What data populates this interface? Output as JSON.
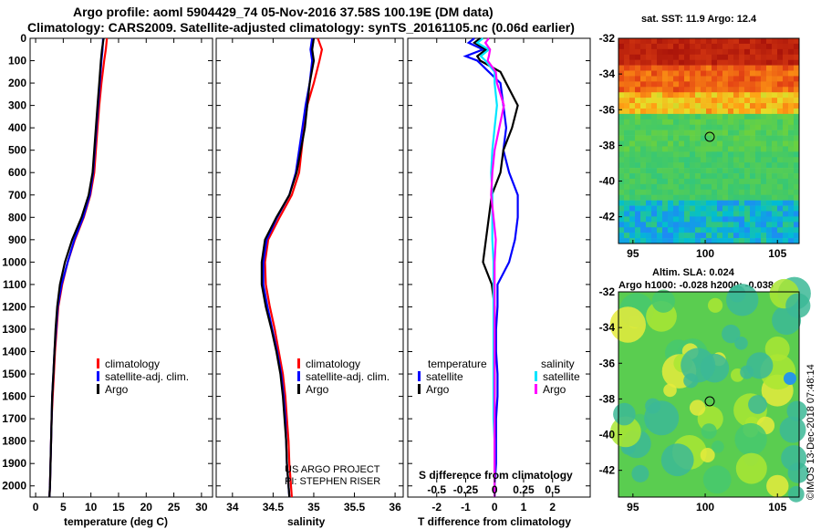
{
  "title_line1": "Argo profile: aoml 5904429_74 05-Nov-2016 37.58S 100.19E (DM data)",
  "title_line2": "Climatology: CARS2009. Satellite-adjusted climatology: synTS_20161105.nc (0.06d earlier)",
  "colors": {
    "climatology": "#ff0000",
    "satellite_adj": "#0000ff",
    "argo": "#000000",
    "sal_satellite": "#00e5ff",
    "sal_argo": "#ff00ff"
  },
  "chart_data": [
    {
      "type": "line",
      "id": "temperature",
      "xlabel": "temperature (deg C)",
      "xlim": [
        -1,
        32
      ],
      "xticks": [
        0,
        5,
        10,
        15,
        20,
        25,
        30
      ],
      "xtick_labels": [
        "0",
        "5",
        "10",
        "15",
        "20",
        "25",
        "30"
      ],
      "ylim": [
        2050,
        0
      ],
      "yticks": [
        0,
        100,
        200,
        300,
        400,
        500,
        600,
        700,
        800,
        900,
        1000,
        1100,
        1200,
        1300,
        1400,
        1500,
        1600,
        1700,
        1800,
        1900,
        2000
      ],
      "ytick_labels": [
        "0",
        "100",
        "200",
        "300",
        "400",
        "500",
        "600",
        "700",
        "800",
        "900",
        "1000",
        "1100",
        "1200",
        "1300",
        "1400",
        "1500",
        "1600",
        "1700",
        "1800",
        "1900",
        "2000"
      ],
      "legend": [
        "climatology",
        "satellite-adj. clim.",
        "Argo"
      ],
      "series": [
        {
          "name": "climatology",
          "depth": [
            0,
            50,
            100,
            200,
            300,
            400,
            500,
            600,
            700,
            800,
            900,
            1000,
            1100,
            1200,
            1300,
            1400,
            1500,
            1600,
            1700,
            1800,
            1900,
            2000,
            2050
          ],
          "values": [
            12.9,
            12.7,
            12.4,
            11.9,
            11.5,
            11.2,
            10.9,
            10.6,
            9.9,
            8.7,
            7.1,
            5.8,
            4.8,
            4.1,
            3.8,
            3.5,
            3.3,
            3.1,
            2.9,
            2.8,
            2.7,
            2.6,
            2.5
          ]
        },
        {
          "name": "satellite-adj. clim.",
          "depth": [
            0,
            50,
            100,
            200,
            300,
            400,
            500,
            600,
            700,
            800,
            900,
            1000,
            1100,
            1200,
            1300,
            1400,
            1500,
            1600,
            1700,
            1800,
            1900,
            2000,
            2050
          ],
          "values": [
            12.2,
            12.1,
            11.9,
            11.6,
            11.3,
            11.0,
            10.7,
            10.4,
            9.8,
            8.6,
            7.0,
            5.8,
            4.7,
            4.0,
            3.7,
            3.4,
            3.2,
            3.0,
            2.9,
            2.8,
            2.7,
            2.6,
            2.5
          ]
        },
        {
          "name": "Argo",
          "depth": [
            0,
            50,
            100,
            200,
            300,
            400,
            500,
            600,
            700,
            800,
            900,
            1000,
            1100,
            1200,
            1300,
            1400,
            1500,
            1600,
            1700,
            1800,
            1900,
            2000,
            2050
          ],
          "values": [
            12.3,
            12.0,
            11.8,
            11.5,
            11.2,
            10.9,
            10.6,
            10.3,
            9.6,
            8.3,
            6.6,
            5.3,
            4.4,
            3.9,
            3.6,
            3.4,
            3.2,
            3.0,
            2.9,
            2.8,
            2.7,
            2.6,
            2.5
          ]
        }
      ]
    },
    {
      "type": "line",
      "id": "salinity",
      "xlabel": "salinity",
      "xlim": [
        33.8,
        36.1
      ],
      "xticks": [
        34,
        34.5,
        35,
        35.5,
        36
      ],
      "xtick_labels": [
        "34",
        "34.5",
        "35",
        "35.5",
        "36"
      ],
      "ylim": [
        2050,
        0
      ],
      "legend": [
        "climatology",
        "satellite-adj. clim.",
        "Argo"
      ],
      "credit_line1": "US ARGO PROJECT",
      "credit_line2": "PI: STEPHEN RISER",
      "series": [
        {
          "name": "climatology",
          "depth": [
            0,
            50,
            100,
            200,
            300,
            400,
            500,
            600,
            700,
            800,
            900,
            1000,
            1100,
            1200,
            1300,
            1400,
            1500,
            1600,
            1700,
            1800,
            1900,
            2000,
            2050
          ],
          "values": [
            35.05,
            35.1,
            35.07,
            35.0,
            34.92,
            34.88,
            34.85,
            34.82,
            34.73,
            34.58,
            34.44,
            34.4,
            34.41,
            34.46,
            34.52,
            34.57,
            34.62,
            34.65,
            34.67,
            34.69,
            34.7,
            34.72,
            34.73
          ]
        },
        {
          "name": "satellite-adj. clim.",
          "depth": [
            0,
            50,
            100,
            200,
            300,
            400,
            500,
            600,
            700,
            800,
            900,
            1000,
            1100,
            1200,
            1300,
            1400,
            1500,
            1600,
            1700,
            1800,
            1900,
            2000,
            2050
          ],
          "values": [
            34.98,
            34.96,
            34.98,
            34.95,
            34.9,
            34.86,
            34.82,
            34.78,
            34.7,
            34.55,
            34.42,
            34.38,
            34.38,
            34.43,
            34.49,
            34.55,
            34.6,
            34.63,
            34.65,
            34.66,
            34.67,
            34.69,
            34.7
          ]
        },
        {
          "name": "Argo",
          "depth": [
            0,
            50,
            100,
            200,
            300,
            400,
            500,
            600,
            700,
            800,
            900,
            1000,
            1100,
            1200,
            1300,
            1400,
            1500,
            1600,
            1700,
            1800,
            1900,
            2000,
            2050
          ],
          "values": [
            35.0,
            34.98,
            35.0,
            34.95,
            34.92,
            34.89,
            34.84,
            34.79,
            34.7,
            34.54,
            34.4,
            34.36,
            34.36,
            34.41,
            34.48,
            34.54,
            34.59,
            34.62,
            34.64,
            34.66,
            34.67,
            34.69,
            34.7
          ]
        }
      ]
    },
    {
      "type": "line",
      "id": "differences",
      "xlabel": "T difference from climatology",
      "xlabel2": "S difference from climatology",
      "xlim": [
        -3,
        3.3
      ],
      "xticks": [
        -2,
        -1,
        0,
        1,
        2
      ],
      "xtick_labels": [
        "-2",
        "-1",
        "0",
        "1",
        "2"
      ],
      "sal_xtick_labels": [
        "-0.5",
        "-0.25",
        "0",
        "0.25",
        "0.5"
      ],
      "ylim": [
        2050,
        0
      ],
      "legend_temperature_title": "temperature",
      "legend_salinity_title": "salinity",
      "legend_temperature": [
        "satellite",
        "Argo"
      ],
      "legend_salinity": [
        "satellite",
        "Argo"
      ],
      "series": [
        {
          "name": "T satellite",
          "depth": [
            0,
            20,
            50,
            80,
            100,
            150,
            200,
            300,
            400,
            500,
            600,
            700,
            800,
            900,
            1000,
            1100,
            1200,
            1300,
            1400,
            1500,
            1600,
            1700,
            1800,
            1900,
            2000,
            2050
          ],
          "values": [
            -0.7,
            -0.9,
            -0.4,
            -1.0,
            -0.6,
            -0.2,
            0.2,
            0.3,
            0.4,
            0.3,
            0.5,
            0.8,
            0.8,
            0.7,
            0.5,
            0.1,
            0.1,
            0.05,
            0.05,
            0.1,
            0.1,
            0.05,
            0.05,
            0.05,
            0.0,
            0.0
          ]
        },
        {
          "name": "T Argo",
          "depth": [
            0,
            20,
            50,
            80,
            100,
            150,
            200,
            300,
            400,
            500,
            600,
            700,
            800,
            900,
            1000,
            1100,
            1200,
            1300,
            1400,
            1500,
            1600,
            1700,
            1800,
            1900,
            2000,
            2050
          ],
          "values": [
            -0.5,
            -0.7,
            -0.3,
            -0.6,
            -0.5,
            0.2,
            0.4,
            0.8,
            0.6,
            0.3,
            0.2,
            -0.1,
            -0.2,
            -0.3,
            -0.4,
            -0.1,
            0.0,
            0.0,
            0.0,
            0.0,
            0.0,
            0.0,
            0.0,
            0.0,
            0.0,
            0.0
          ]
        },
        {
          "name": "S satellite",
          "depth": [
            0,
            20,
            50,
            80,
            100,
            150,
            200,
            300,
            400,
            500,
            600,
            700,
            800,
            900,
            1000,
            1100,
            1200,
            1300,
            1400,
            1500,
            1600,
            1700,
            1800,
            1900,
            2000,
            2050
          ],
          "values": [
            -0.1,
            -0.15,
            -0.05,
            -0.12,
            -0.08,
            0.0,
            0.0,
            0.02,
            0.0,
            -0.02,
            -0.03,
            -0.02,
            -0.02,
            -0.02,
            -0.01,
            -0.01,
            -0.01,
            -0.01,
            -0.01,
            -0.01,
            -0.01,
            -0.01,
            0.0,
            0.0,
            0.0,
            0.0
          ]
        },
        {
          "name": "S Argo",
          "depth": [
            0,
            20,
            50,
            80,
            100,
            150,
            200,
            300,
            400,
            500,
            600,
            700,
            800,
            900,
            1000,
            1100,
            1200,
            1300,
            1400,
            1500,
            1600,
            1700,
            1800,
            1900,
            2000,
            2050
          ],
          "values": [
            -0.05,
            -0.08,
            -0.04,
            -0.05,
            -0.06,
            0.01,
            0.02,
            0.08,
            0.04,
            0.0,
            -0.02,
            -0.03,
            -0.01,
            0.01,
            0.0,
            0.0,
            0.0,
            0.0,
            0.0,
            0.0,
            0.0,
            0.0,
            0.0,
            0.0,
            0.0,
            0.0
          ]
        }
      ]
    },
    {
      "type": "heatmap",
      "id": "sst_map",
      "title": "sat. SST: 11.9 Argo: 12.4",
      "xlim": [
        94,
        106.5
      ],
      "ylim": [
        -43.5,
        -32
      ],
      "xticks": [
        95,
        100,
        105
      ],
      "xtick_labels": [
        "95",
        "100",
        "105"
      ],
      "yticks": [
        -32,
        -34,
        -36,
        -38,
        -40,
        -42
      ],
      "ytick_labels": [
        "-32",
        "-34",
        "-36",
        "-38",
        "-40",
        "-42"
      ],
      "marker": {
        "lon": 100.19,
        "lat": -37.58
      }
    },
    {
      "type": "heatmap",
      "id": "sla_map",
      "title": "Altim. SLA: 0.024",
      "subtitle": "Argo h1000: -0.028 h2000: -0.038",
      "xlim": [
        94,
        106.5
      ],
      "ylim": [
        -43.5,
        -32
      ],
      "xticks": [
        95,
        100,
        105
      ],
      "xtick_labels": [
        "95",
        "100",
        "105"
      ],
      "yticks": [
        -32,
        -34,
        -36,
        -38,
        -40,
        -42
      ],
      "ytick_labels": [
        "-32",
        "-34",
        "-36",
        "-38",
        "-40",
        "-42"
      ],
      "marker": {
        "lon": 100.19,
        "lat": -37.58
      }
    }
  ],
  "timestamp": "©IMOS 13-Dec-2018 07:48:14"
}
